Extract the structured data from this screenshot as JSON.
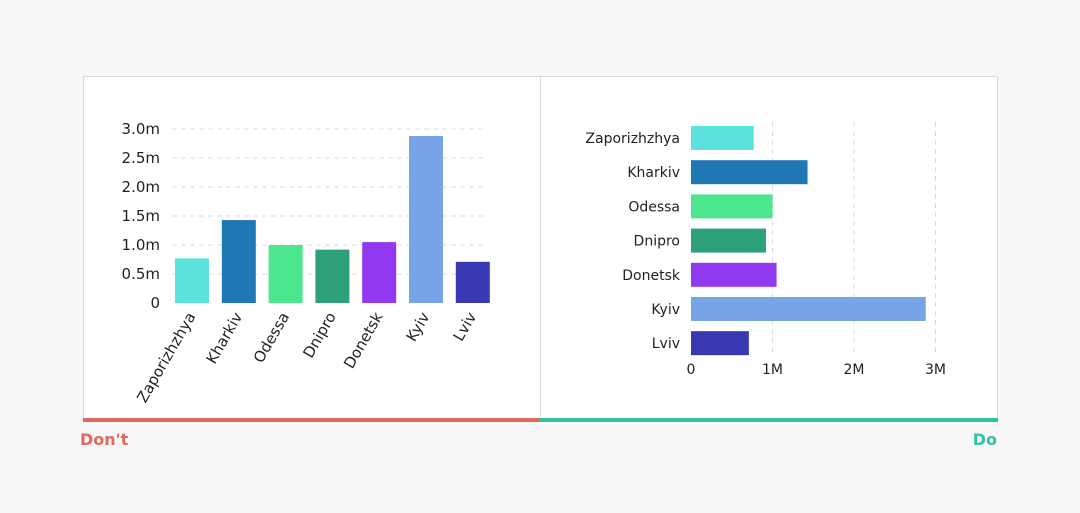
{
  "labels": {
    "dont": "Don't",
    "do": "Do"
  },
  "colors": {
    "dont": "#e0685d",
    "do": "#2fc3a4",
    "grid": "#dcdcdc",
    "text": "#222222"
  },
  "chart_data": [
    {
      "type": "bar",
      "orientation": "vertical",
      "categories": [
        "Zaporizhzhya",
        "Kharkiv",
        "Odessa",
        "Dnipro",
        "Donetsk",
        "Kyiv",
        "Lviv"
      ],
      "values": [
        0.77,
        1.43,
        1.0,
        0.92,
        1.05,
        2.88,
        0.71
      ],
      "colors": [
        "#5de3de",
        "#1f77b4",
        "#4ce68f",
        "#2ca178",
        "#9139f0",
        "#76a4e6",
        "#3838b2"
      ],
      "ylim": [
        0,
        3.0
      ],
      "yticks": [
        0,
        0.5,
        1.0,
        1.5,
        2.0,
        2.5,
        3.0
      ],
      "yticklabels": [
        "0",
        "0.5m",
        "1.0m",
        "1.5m",
        "2.0m",
        "2.5m",
        "3.0m"
      ],
      "grid": true,
      "xtick_rotation": "-60deg"
    },
    {
      "type": "bar",
      "orientation": "horizontal",
      "categories": [
        "Zaporizhzhya",
        "Kharkiv",
        "Odessa",
        "Dnipro",
        "Donetsk",
        "Kyiv",
        "Lviv"
      ],
      "values": [
        0.77,
        1.43,
        1.0,
        0.92,
        1.05,
        2.88,
        0.71
      ],
      "colors": [
        "#5de3de",
        "#1f77b4",
        "#4ce68f",
        "#2ca178",
        "#9139f0",
        "#76a4e6",
        "#3838b2"
      ],
      "xlim": [
        0,
        3.0
      ],
      "xticks": [
        0,
        1,
        2,
        3
      ],
      "xticklabels": [
        "0",
        "1M",
        "2M",
        "3M"
      ],
      "grid": true
    }
  ]
}
